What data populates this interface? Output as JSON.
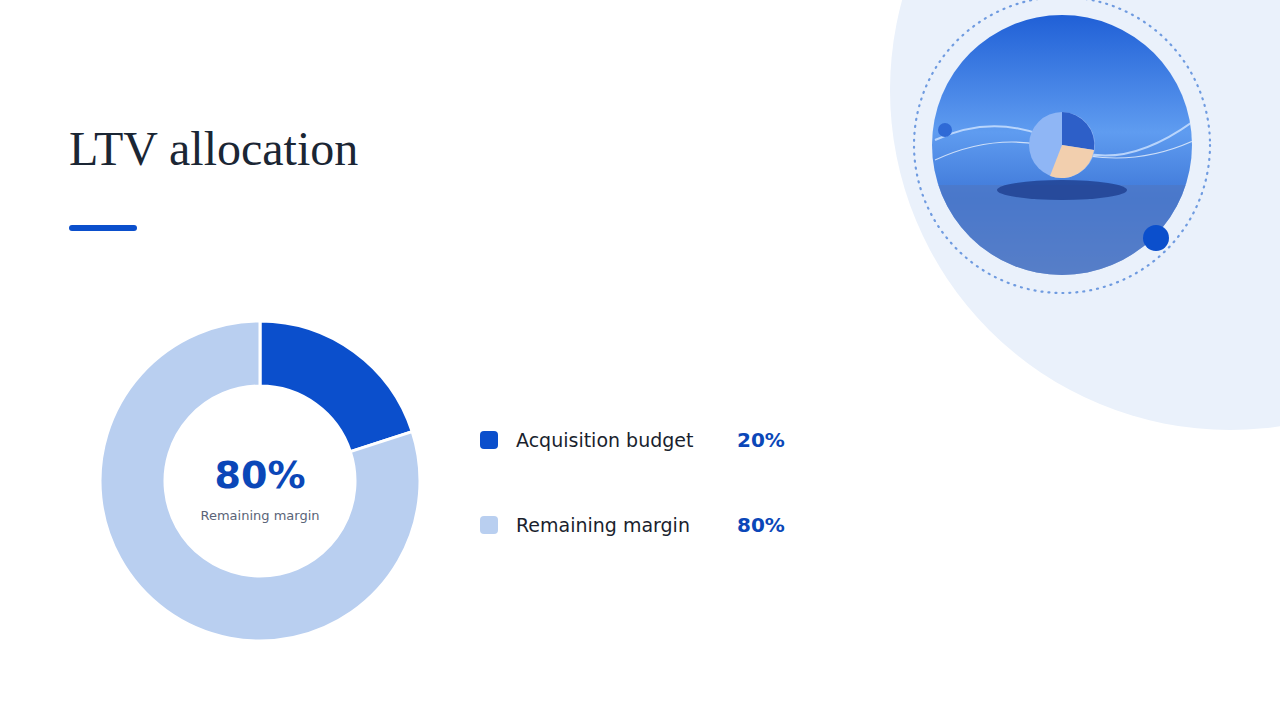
{
  "chart_data": {
    "type": "donut",
    "title": "LTV allocation",
    "categories": [
      "Acquisition budget",
      "Remaining margin"
    ],
    "values": [
      20,
      80
    ],
    "value_labels": [
      "20%",
      "80%"
    ],
    "colors": [
      "#0b4fcc",
      "#b9cff0"
    ],
    "legend": "right",
    "annotations": [
      "80%",
      "Remaining margin"
    ]
  }
}
